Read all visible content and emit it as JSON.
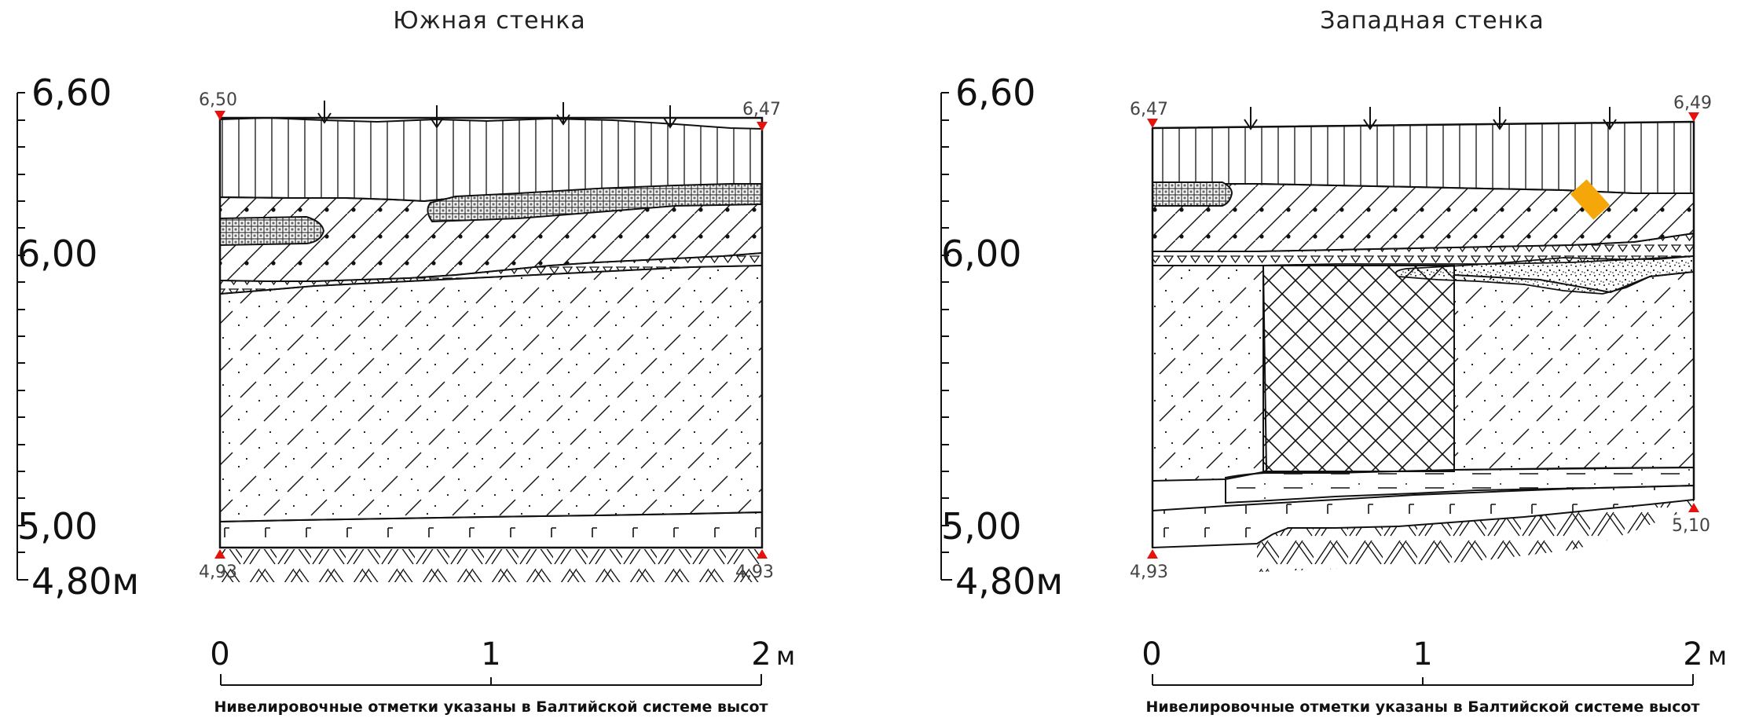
{
  "south": {
    "title": "Южная стенка",
    "scale_labels": [
      "6,60",
      "6,00",
      "5,00",
      "4,80м"
    ],
    "marks": {
      "top_left": "6,50",
      "top_right": "6,47",
      "bottom_left": "4,93",
      "bottom_right": "4,93"
    },
    "bar": {
      "zero": "0",
      "one": "1",
      "two": "2",
      "unit": "м"
    },
    "note": "Нивелировочные отметки указаны в Балтийской системе высот"
  },
  "west": {
    "title": "Западная стенка",
    "scale_labels": [
      "6,60",
      "6,00",
      "5,00",
      "4,80м"
    ],
    "marks": {
      "top_left": "6,47",
      "top_right": "6,49",
      "bottom_left": "4,93",
      "bottom_right": "5,10"
    },
    "bar": {
      "zero": "0",
      "one": "1",
      "two": "2",
      "unit": "м"
    },
    "note": "Нивелировочные отметки указаны в Балтийской системе высот"
  },
  "colors": {
    "line": "#111111",
    "marker": "#e8120c",
    "find": "#f5a70a",
    "dark": "#555555"
  }
}
